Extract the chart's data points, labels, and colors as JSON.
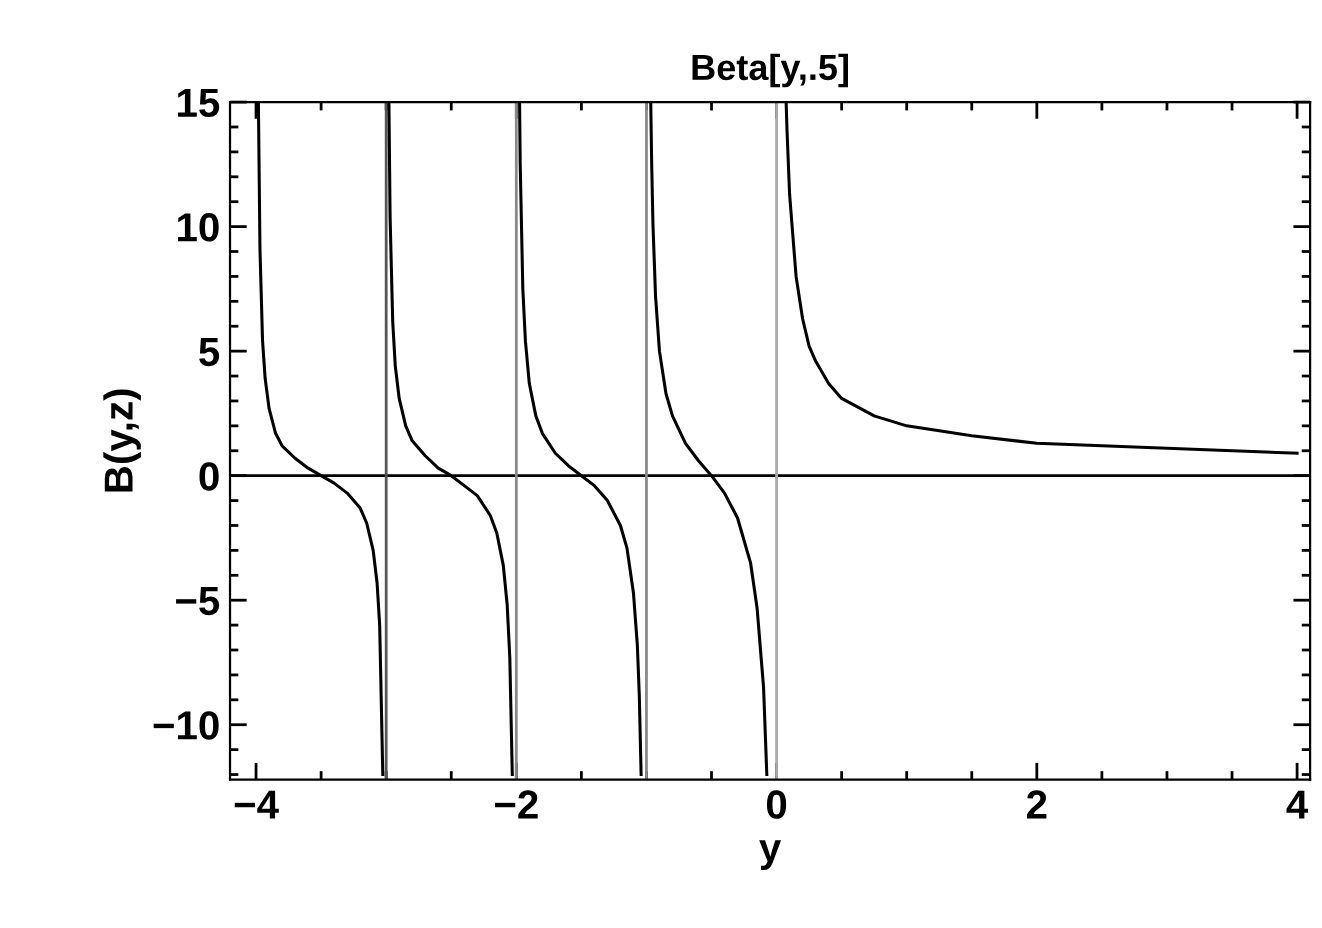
{
  "chart_data": {
    "type": "line",
    "title": "Beta[y,.5]",
    "xlabel": "y",
    "ylabel": "B(y,z)",
    "series": [
      {
        "color": "#000000",
        "x": [
          -3.982,
          -3.97,
          -3.95,
          -3.93,
          -3.9,
          -3.85,
          -3.8,
          -3.7,
          -3.6,
          -3.5,
          -3.4,
          -3.3,
          -3.2,
          -3.15,
          -3.1,
          -3.07,
          -3.05,
          -3.026,
          -3.0,
          -2.979,
          -2.97,
          -2.95,
          -2.93,
          -2.9,
          -2.85,
          -2.8,
          -2.7,
          -2.6,
          -2.5,
          -2.4,
          -2.3,
          -2.2,
          -2.15,
          -2.1,
          -2.07,
          -2.05,
          -2.031,
          -2.0,
          -1.975,
          -1.97,
          -1.95,
          -1.93,
          -1.9,
          -1.85,
          -1.8,
          -1.7,
          -1.6,
          -1.5,
          -1.4,
          -1.3,
          -1.2,
          -1.15,
          -1.1,
          -1.07,
          -1.055,
          -1.041,
          -1.0,
          -0.967,
          -0.96,
          -0.95,
          -0.93,
          -0.9,
          -0.85,
          -0.8,
          -0.7,
          -0.6,
          -0.5,
          -0.4,
          -0.3,
          -0.2,
          -0.15,
          -0.1,
          -0.075,
          0.0,
          0.0735,
          0.08,
          0.1,
          0.15,
          0.2,
          0.25,
          0.3,
          0.4,
          0.5,
          0.75,
          1,
          1.5,
          2,
          2.5,
          3,
          4
        ],
        "values": [
          15,
          9.1,
          5.4,
          3.9,
          2.7,
          1.7,
          1.2,
          0.7,
          0.3,
          0,
          -0.3,
          -0.7,
          -1.3,
          -1.9,
          -3,
          -4.3,
          -6,
          -12,
          null,
          15,
          10.4,
          6.2,
          4.4,
          3.1,
          2,
          1.4,
          0.8,
          0.3,
          0,
          -0.4,
          -0.8,
          -1.6,
          -2.3,
          -3.6,
          -5.2,
          -7.3,
          -12,
          null,
          15,
          12.5,
          7.5,
          5.4,
          3.7,
          2.4,
          1.7,
          0.9,
          0.4,
          0,
          -0.4,
          -1,
          -2,
          -2.9,
          -4.7,
          -6.8,
          -8.8,
          -12,
          null,
          15,
          12.6,
          10.1,
          7.2,
          5,
          3.3,
          2.4,
          1.3,
          0.6,
          0,
          -0.7,
          -1.7,
          -3.5,
          -5.3,
          -8.5,
          -12,
          null,
          15,
          13.9,
          11.3,
          8,
          6.3,
          5.2,
          4.6,
          3.7,
          3.1,
          2.4,
          2,
          1.6,
          1.3,
          1.2,
          1.1,
          0.9
        ]
      }
    ],
    "xlim": [
      -4.2,
      4.1
    ],
    "ylim": [
      -12.2,
      15
    ],
    "xticks": [
      {
        "value": -4,
        "label": "−4"
      },
      {
        "value": -2,
        "label": "−2"
      },
      0,
      2,
      4
    ],
    "yticks": [
      {
        "value": -10,
        "label": "−10"
      },
      {
        "value": -5,
        "label": "−5"
      },
      0,
      5,
      10,
      15
    ],
    "ref_lines": [
      {
        "axis": "y",
        "value": 0,
        "color": "#000000"
      },
      {
        "axis": "x",
        "value": -3,
        "color": "#555555"
      },
      {
        "axis": "x",
        "value": -2,
        "color": "#888888"
      },
      {
        "axis": "x",
        "value": -1,
        "color": "#888888"
      },
      {
        "axis": "x",
        "value": 0,
        "color": "#aaaaaa"
      }
    ],
    "marker": "none",
    "line_style": "solid",
    "grid": false,
    "legend": false
  }
}
